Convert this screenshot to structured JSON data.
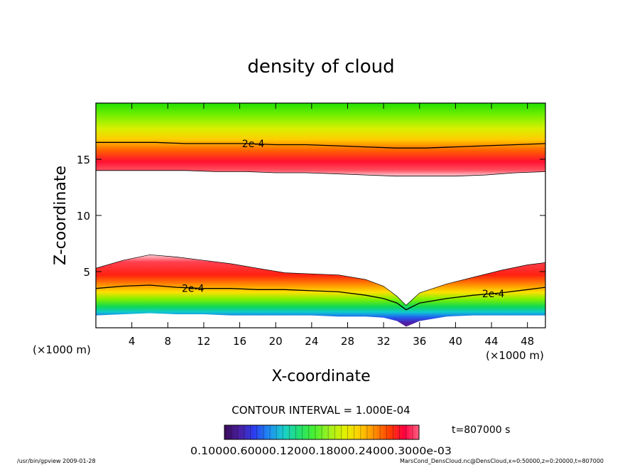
{
  "chart_data": {
    "type": "heatmap",
    "title": "density of cloud",
    "xlabel": "X-coordinate",
    "ylabel": "Z-coordinate",
    "x_unit_left": "(×1000 m)",
    "x_unit_right": "(×1000 m)",
    "xlim": [
      0,
      50
    ],
    "ylim": [
      0,
      20
    ],
    "x_ticks": [
      4,
      8,
      12,
      16,
      20,
      24,
      28,
      32,
      36,
      40,
      44,
      48
    ],
    "y_ticks": [
      5,
      10,
      15
    ],
    "contour_interval_text": "CONTOUR INTERVAL = 1.000E-04",
    "time_text": "t=807000 s",
    "contour_label": "2e-4",
    "colorbar_labels_text": "0.10000.60000.12000.18000.24000.3000e-03",
    "colorbar_colors": [
      "#3a0b5a",
      "#4a1fa0",
      "#2c3df0",
      "#1e8ff2",
      "#1ad0c8",
      "#22e070",
      "#4af030",
      "#a0f020",
      "#e0f000",
      "#ffd000",
      "#ff9000",
      "#ff4000",
      "#ff0040",
      "#ff6080"
    ],
    "upper_layer": {
      "z_bottom": [
        14.0,
        14.0,
        14.0,
        14.0,
        13.9,
        13.9,
        13.8,
        13.8,
        13.7,
        13.6,
        13.5,
        13.5,
        13.5,
        13.6,
        13.8,
        13.9
      ],
      "contour_2e4": [
        16.5,
        16.5,
        16.5,
        16.4,
        16.4,
        16.4,
        16.3,
        16.3,
        16.2,
        16.1,
        16.0,
        16.0,
        16.1,
        16.2,
        16.3,
        16.4
      ]
    },
    "lower_layer": {
      "x": [
        0,
        3,
        6,
        9,
        12,
        15,
        18,
        21,
        24,
        27,
        30,
        32,
        33.5,
        34.5,
        36,
        39,
        42,
        45,
        48,
        50
      ],
      "z_top": [
        5.3,
        6.0,
        6.5,
        6.3,
        6.0,
        5.7,
        5.3,
        4.9,
        4.8,
        4.7,
        4.3,
        3.7,
        2.8,
        2.0,
        3.1,
        3.9,
        4.5,
        5.1,
        5.6,
        5.8
      ],
      "contour_2e4": [
        3.5,
        3.7,
        3.8,
        3.6,
        3.5,
        3.5,
        3.4,
        3.4,
        3.3,
        3.2,
        2.9,
        2.6,
        2.2,
        1.6,
        2.2,
        2.6,
        2.9,
        3.1,
        3.4,
        3.6
      ],
      "z_bottom": [
        1.1,
        1.2,
        1.3,
        1.2,
        1.2,
        1.1,
        1.1,
        1.1,
        1.1,
        1.0,
        1.0,
        0.9,
        0.6,
        0.1,
        0.6,
        1.0,
        1.1,
        1.1,
        1.1,
        1.1
      ]
    }
  },
  "footer": {
    "program": "/usr/bin/gpview   2009-01-28",
    "source": "MarsCond_DensCloud.nc@DensCloud,x=0:50000,z=0:20000,t=807000"
  }
}
